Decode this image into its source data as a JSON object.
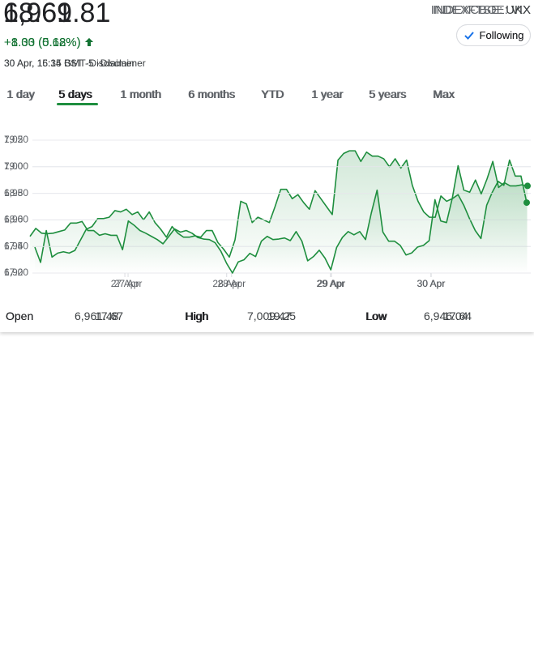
{
  "widgets": [
    {
      "price": "6,969.81",
      "change": "+8.33 (0.12%)",
      "timestamp": "30 Apr, 16:35 BST",
      "disclaimer": "·Disclaimer",
      "exchange": "INDEXFTSE:",
      "symbol": "UKX",
      "follow": "Following",
      "tabs": [
        "1 day",
        "5 days",
        "1 month",
        "6 months",
        "YTD",
        "1 year",
        "5 years",
        "Max"
      ],
      "selected_tab": 1,
      "stats": [
        {
          "label": "Open",
          "value": "6,961.48"
        },
        {
          "label": "High",
          "value": "7,009.47"
        },
        {
          "label": "Low",
          "value": "6,946.04"
        }
      ]
    },
    {
      "price": "18.61",
      "change": "+1.00 (5.68%)",
      "timestamp": "30 Apr, 15:14 GMT-5",
      "disclaimer": "·Disclaimer",
      "exchange": "INDEXCBOE:",
      "symbol": "VIX",
      "follow": "Following",
      "tabs": [
        "1 day",
        "5 days",
        "1 month",
        "6 months",
        "YTD",
        "1 year",
        "5 years",
        "Max"
      ],
      "selected_tab": 1,
      "stats": [
        {
          "label": "Open",
          "value": "17.67"
        },
        {
          "label": "High",
          "value": "19.25"
        },
        {
          "label": "Low",
          "value": "17.64"
        }
      ]
    }
  ],
  "chart_data": [
    {
      "type": "line",
      "color": "#1e8e3e",
      "grid": true,
      "ylim": [
        6920,
        7020
      ],
      "yticks": [
        {
          "value": 6920,
          "label": "6,920"
        },
        {
          "value": 6940,
          "label": "6,940"
        },
        {
          "value": 6960,
          "label": "6,960"
        },
        {
          "value": 6980,
          "label": "6,980"
        },
        {
          "value": 7000,
          "label": "7,000"
        },
        {
          "value": 7020,
          "label": "7,020"
        }
      ],
      "xlim": [
        0,
        86
      ],
      "xticks": [
        {
          "value": 16.3,
          "label": "27 Apr"
        },
        {
          "value": 34.4,
          "label": "28 Apr"
        },
        {
          "value": 51.7,
          "label": "29 Apr"
        },
        {
          "value": 69.3,
          "label": "30 Apr"
        }
      ],
      "values": [
        6939.5,
        6928,
        6952,
        6932,
        6935,
        6936,
        6935,
        6937,
        6945,
        6953,
        6955,
        6961,
        6961,
        6962,
        6967,
        6966,
        6968,
        6964,
        6966,
        6960,
        6966,
        6958,
        6953,
        6947,
        6955,
        6950,
        6947,
        6947,
        6948,
        6947,
        6952,
        6952,
        6943,
        6938,
        6932,
        6945,
        6974,
        6972,
        6958,
        6962,
        6960,
        6958,
        6970,
        6983,
        6983,
        6976,
        6979,
        6973,
        6968,
        6982,
        6976,
        6970,
        6964,
        7005,
        7010,
        7012,
        7012,
        7004,
        7011,
        7008,
        7008,
        7006,
        7000,
        7006,
        6999,
        7005,
        6986,
        6974,
        6966,
        6962,
        6962,
        6978,
        6974,
        6976,
        6979,
        6971,
        6961,
        6952,
        6946,
        6971,
        6981,
        6989,
        6986,
        7005,
        6993,
        6993,
        6973
      ]
    },
    {
      "type": "line",
      "color": "#1e8e3e",
      "grid": true,
      "ylim": [
        17,
        19.5
      ],
      "yticks": [
        {
          "value": 17,
          "label": "17.0"
        },
        17.5,
        {
          "value": 18,
          "label": "18.0"
        },
        18.5,
        {
          "value": 19,
          "label": "19.0"
        },
        19.5
      ],
      "xlim": [
        0,
        86
      ],
      "xticks": [
        {
          "value": 16.4,
          "label": "27 Apr"
        },
        {
          "value": 34,
          "label": "28 Apr"
        },
        {
          "value": 52.1,
          "label": "29 Apr"
        },
        {
          "value": 69.3,
          "label": "30 Apr"
        }
      ],
      "values": [
        17.69,
        17.84,
        17.75,
        17.74,
        17.75,
        17.78,
        17.81,
        17.94,
        17.94,
        17.97,
        17.8,
        17.8,
        17.71,
        17.74,
        17.71,
        17.71,
        17.44,
        17.98,
        17.9,
        17.8,
        17.75,
        17.69,
        17.63,
        17.55,
        17.69,
        17.83,
        17.77,
        17.8,
        17.75,
        17.67,
        17.64,
        17.63,
        17.57,
        17.41,
        17.18,
        17.0,
        17.21,
        17.25,
        17.37,
        17.31,
        17.6,
        17.69,
        17.63,
        17.64,
        17.66,
        17.61,
        17.78,
        17.6,
        17.23,
        17.31,
        17.43,
        17.28,
        17.06,
        17.48,
        17.67,
        17.78,
        17.72,
        17.78,
        17.63,
        18.13,
        18.56,
        17.77,
        17.6,
        17.6,
        17.52,
        17.34,
        17.38,
        17.49,
        17.52,
        17.61,
        18.38,
        17.98,
        17.95,
        18.41,
        19.02,
        18.56,
        18.52,
        18.75,
        18.49,
        18.77,
        19.1,
        18.61,
        18.7,
        18.64,
        18.64,
        18.66,
        18.64
      ]
    }
  ]
}
